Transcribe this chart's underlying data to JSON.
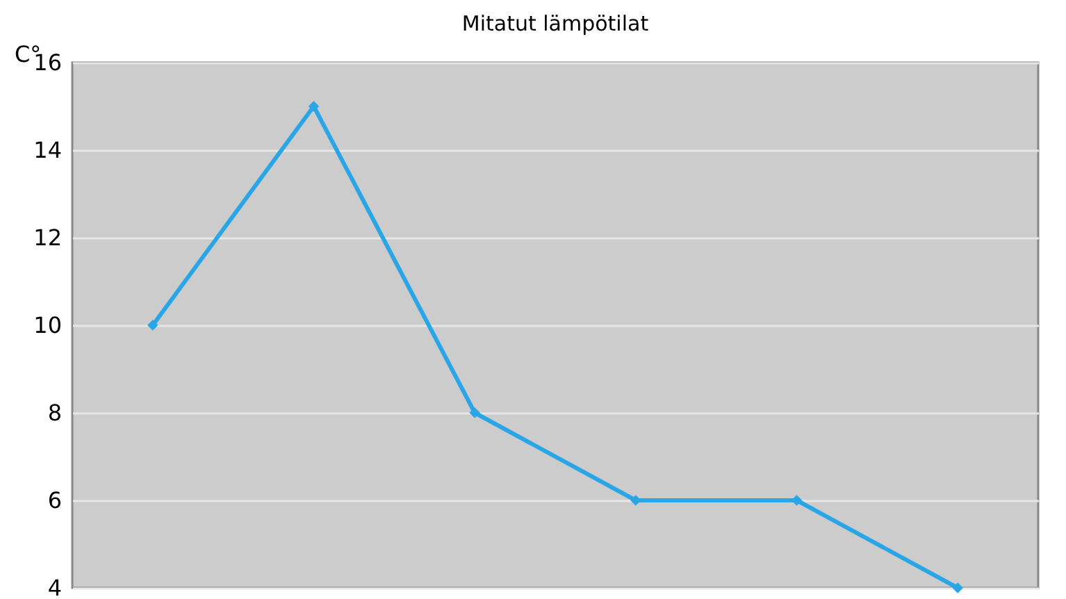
{
  "chart_data": {
    "type": "line",
    "title": "Mitatut lämpötilat",
    "ylabel": "C°",
    "categories": [
      null,
      null,
      null,
      null,
      null,
      null
    ],
    "series": [
      {
        "color": "#2aa6e6",
        "values": [
          10,
          15,
          8,
          6,
          6,
          4
        ]
      }
    ],
    "ylim": [
      4,
      16
    ],
    "yticks": [
      4,
      6,
      8,
      10,
      12,
      14,
      16
    ],
    "grid": "y",
    "marker": "diamond",
    "line_style": "solid",
    "tick_labels": "y"
  }
}
